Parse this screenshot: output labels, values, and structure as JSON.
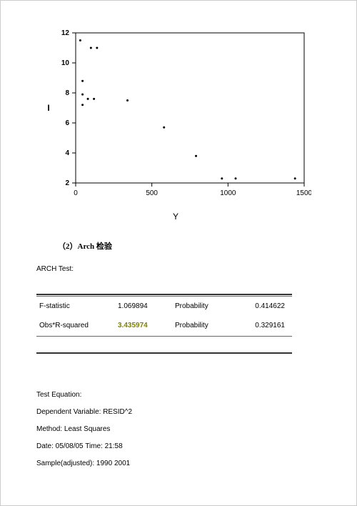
{
  "chart": {
    "type": "scatter",
    "xlabel": "Y",
    "ylabel": "I",
    "xlim": [
      0,
      1500
    ],
    "ylim": [
      2,
      12
    ],
    "xticks": [
      0,
      500,
      1000,
      1500
    ],
    "yticks": [
      2,
      4,
      6,
      8,
      10,
      12
    ],
    "axis_color": "#000000",
    "tick_color": "#000000",
    "bg_color": "#ffffff",
    "marker_color": "#000000",
    "marker_size": 1.5,
    "label_fontsize": 12,
    "tick_fontsize": 10,
    "points": [
      {
        "x": 30,
        "y": 11.5
      },
      {
        "x": 100,
        "y": 11.0
      },
      {
        "x": 140,
        "y": 11.0
      },
      {
        "x": 45,
        "y": 8.8
      },
      {
        "x": 45,
        "y": 7.9
      },
      {
        "x": 45,
        "y": 7.2
      },
      {
        "x": 80,
        "y": 7.6
      },
      {
        "x": 120,
        "y": 7.6
      },
      {
        "x": 340,
        "y": 7.5
      },
      {
        "x": 580,
        "y": 5.7
      },
      {
        "x": 790,
        "y": 3.8
      },
      {
        "x": 960,
        "y": 2.3
      },
      {
        "x": 1050,
        "y": 2.3
      },
      {
        "x": 1440,
        "y": 2.3
      }
    ]
  },
  "section_heading": "（2）Arch 检验",
  "test_name": "ARCH Test:",
  "stats": {
    "row1": {
      "label": "F-statistic",
      "value": "1.069894",
      "prob_label": "Probability",
      "prob_value": "0.414622"
    },
    "row2": {
      "label": "Obs*R-squared",
      "value": "3.435974",
      "value_color": "#808000",
      "prob_label": "Probability",
      "prob_value": "0.329161"
    }
  },
  "meta": {
    "l1": "Test Equation:",
    "l2": "Dependent Variable: RESID^2",
    "l3": "Method: Least Squares",
    "l4": "Date: 05/08/05    Time: 21:58",
    "l5": "Sample(adjusted): 1990 2001"
  }
}
